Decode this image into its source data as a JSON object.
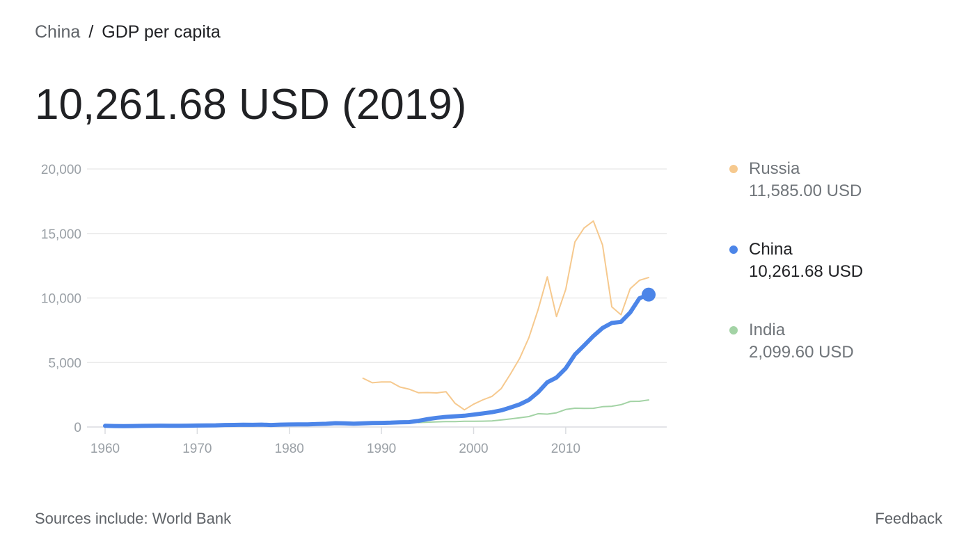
{
  "breadcrumb": {
    "parent": "China",
    "separator": "/",
    "current": "GDP per capita"
  },
  "headline": "10,261.68 USD (2019)",
  "legend": [
    {
      "name": "Russia",
      "value": "11,585.00 USD",
      "color": "#f6c98e"
    },
    {
      "name": "China",
      "value": "10,261.68 USD",
      "color": "#4c85e8"
    },
    {
      "name": "India",
      "value": "2,099.60 USD",
      "color": "#a3d3a5"
    }
  ],
  "footer": {
    "sources": "Sources include: World Bank",
    "feedback": "Feedback"
  },
  "chart_data": {
    "type": "line",
    "xlim": [
      1960,
      2019
    ],
    "ylim": [
      0,
      20000
    ],
    "y_ticks": [
      0,
      5000,
      10000,
      15000,
      20000
    ],
    "y_tick_labels": [
      "0",
      "5,000",
      "10,000",
      "15,000",
      "20,000"
    ],
    "x_ticks": [
      1960,
      1970,
      1980,
      1990,
      2000,
      2010
    ],
    "x_tick_labels": [
      "1960",
      "1970",
      "1980",
      "1990",
      "2000",
      "2010"
    ],
    "grid": true,
    "legend_position": "right",
    "series": [
      {
        "name": "Russia",
        "color": "#f6c98e",
        "x": [
          1988,
          1989,
          1990,
          1991,
          1992,
          1993,
          1994,
          1995,
          1996,
          1997,
          1998,
          1999,
          2000,
          2001,
          2002,
          2003,
          2004,
          2005,
          2006,
          2007,
          2008,
          2009,
          2010,
          2011,
          2012,
          2013,
          2014,
          2015,
          2016,
          2017,
          2018,
          2019
        ],
        "y": [
          3780,
          3430,
          3490,
          3490,
          3100,
          2930,
          2660,
          2670,
          2640,
          2740,
          1830,
          1330,
          1770,
          2100,
          2380,
          2980,
          4100,
          5320,
          6920,
          9100,
          11640,
          8560,
          10670,
          14350,
          15430,
          15970,
          14100,
          9310,
          8700,
          10720,
          11370,
          11585
        ]
      },
      {
        "name": "China",
        "color": "#4c85e8",
        "x": [
          1960,
          1961,
          1962,
          1963,
          1964,
          1965,
          1966,
          1967,
          1968,
          1969,
          1970,
          1971,
          1972,
          1973,
          1974,
          1975,
          1976,
          1977,
          1978,
          1979,
          1980,
          1981,
          1982,
          1983,
          1984,
          1985,
          1986,
          1987,
          1988,
          1989,
          1990,
          1991,
          1992,
          1993,
          1994,
          1995,
          1996,
          1997,
          1998,
          1999,
          2000,
          2001,
          2002,
          2003,
          2004,
          2005,
          2006,
          2007,
          2008,
          2009,
          2010,
          2011,
          2012,
          2013,
          2014,
          2015,
          2016,
          2017,
          2018,
          2019
        ],
        "y": [
          90,
          76,
          70,
          74,
          85,
          98,
          104,
          97,
          91,
          100,
          113,
          119,
          132,
          157,
          160,
          178,
          165,
          185,
          156,
          183,
          195,
          197,
          203,
          225,
          250,
          294,
          281,
          251,
          284,
          311,
          318,
          333,
          366,
          377,
          473,
          610,
          709,
          782,
          829,
          873,
          959,
          1053,
          1149,
          1289,
          1509,
          1753,
          2099,
          2694,
          3468,
          3832,
          4550,
          5618,
          6317,
          7051,
          7679,
          8066,
          8148,
          8879,
          9977,
          10261.68
        ]
      },
      {
        "name": "India",
        "color": "#a3d3a5",
        "x": [
          1994,
          1995,
          1996,
          1997,
          1998,
          1999,
          2000,
          2001,
          2002,
          2003,
          2004,
          2005,
          2006,
          2007,
          2008,
          2009,
          2010,
          2011,
          2012,
          2013,
          2014,
          2015,
          2016,
          2017,
          2018,
          2019
        ],
        "y": [
          346,
          374,
          400,
          415,
          413,
          442,
          443,
          452,
          471,
          546,
          628,
          714,
          807,
          1028,
          999,
          1102,
          1358,
          1458,
          1444,
          1450,
          1574,
          1606,
          1733,
          1981,
          1997,
          2099.6
        ]
      }
    ]
  }
}
